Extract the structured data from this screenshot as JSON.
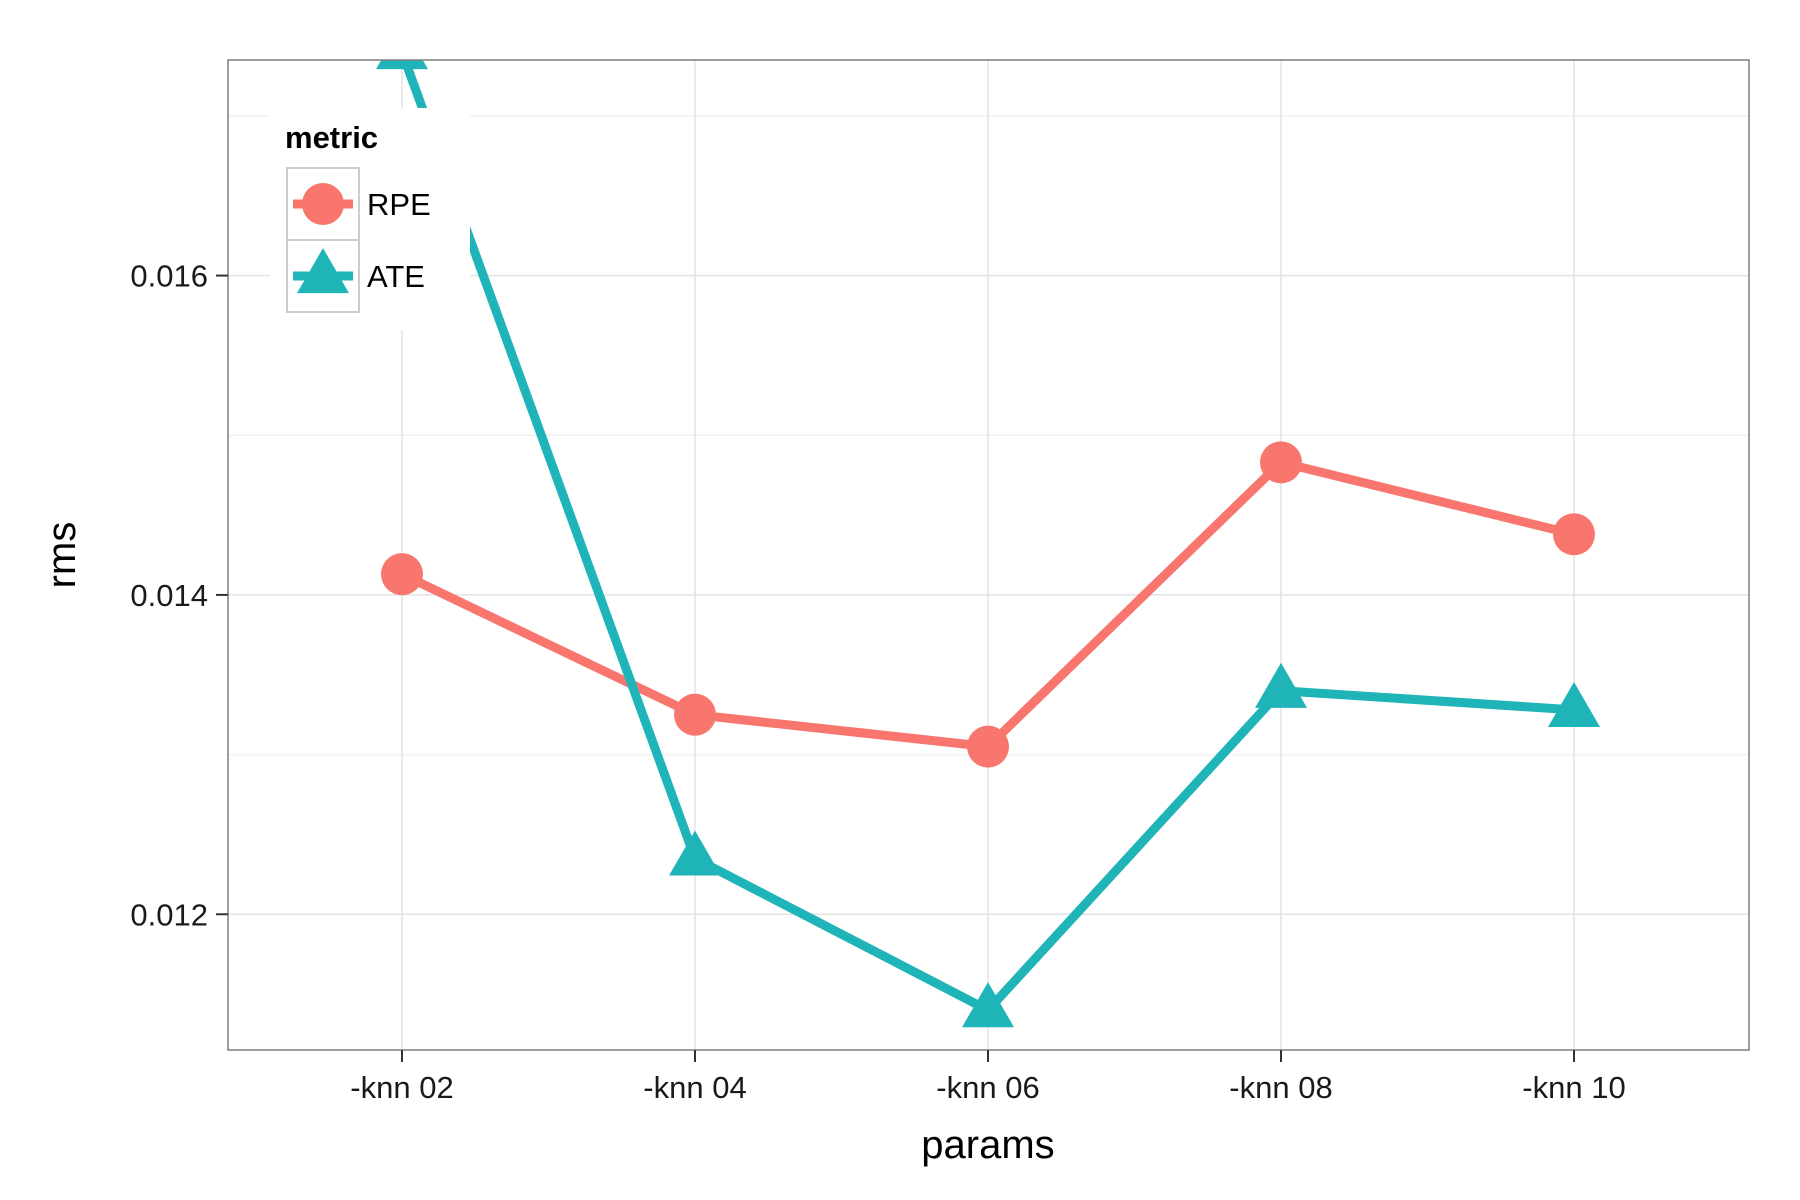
{
  "chart_data": {
    "type": "line",
    "xlabel": "params",
    "ylabel": "rms",
    "categories": [
      "-knn 02",
      "-knn 04",
      "-knn 06",
      "-knn 08",
      "-knn 10"
    ],
    "ylim": [
      0.01115,
      0.01735
    ],
    "yticks": [
      "0.012",
      "0.014",
      "0.016"
    ],
    "ytick_values": [
      0.012,
      0.014,
      0.016
    ],
    "grid": true,
    "legend": {
      "title": "metric",
      "placement": "top-left",
      "entries": [
        "RPE",
        "ATE"
      ]
    },
    "series": [
      {
        "name": "RPE",
        "marker": "circle",
        "color": "#F8766D",
        "values": [
          0.01413,
          0.01325,
          0.01305,
          0.01483,
          0.01438
        ]
      },
      {
        "name": "ATE",
        "marker": "triangle",
        "color": "#1FB5B8",
        "values": [
          0.0174,
          0.01235,
          0.0114,
          0.0134,
          0.01328
        ]
      }
    ]
  }
}
